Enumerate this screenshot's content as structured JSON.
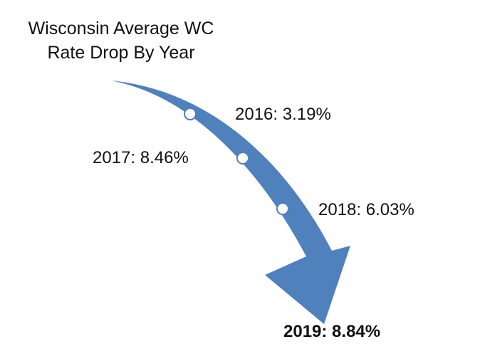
{
  "title_lines": [
    "Wisconsin Average WC",
    "Rate Drop By Year"
  ],
  "milestones": [
    {
      "label": "2016: 3.19%",
      "year": "2016",
      "rate_drop_percent": 3.19,
      "bold": false
    },
    {
      "label": "2017: 8.46%",
      "year": "2017",
      "rate_drop_percent": 8.46,
      "bold": false
    },
    {
      "label": "2018: 6.03%",
      "year": "2018",
      "rate_drop_percent": 6.03,
      "bold": false
    },
    {
      "label": "2019: 8.84%",
      "year": "2019",
      "rate_drop_percent": 8.84,
      "bold": true
    }
  ],
  "colors": {
    "arrow_fill": "#4f81bd",
    "marker_fill": "#ffffff",
    "text": "#111111",
    "background": "#ffffff"
  }
}
